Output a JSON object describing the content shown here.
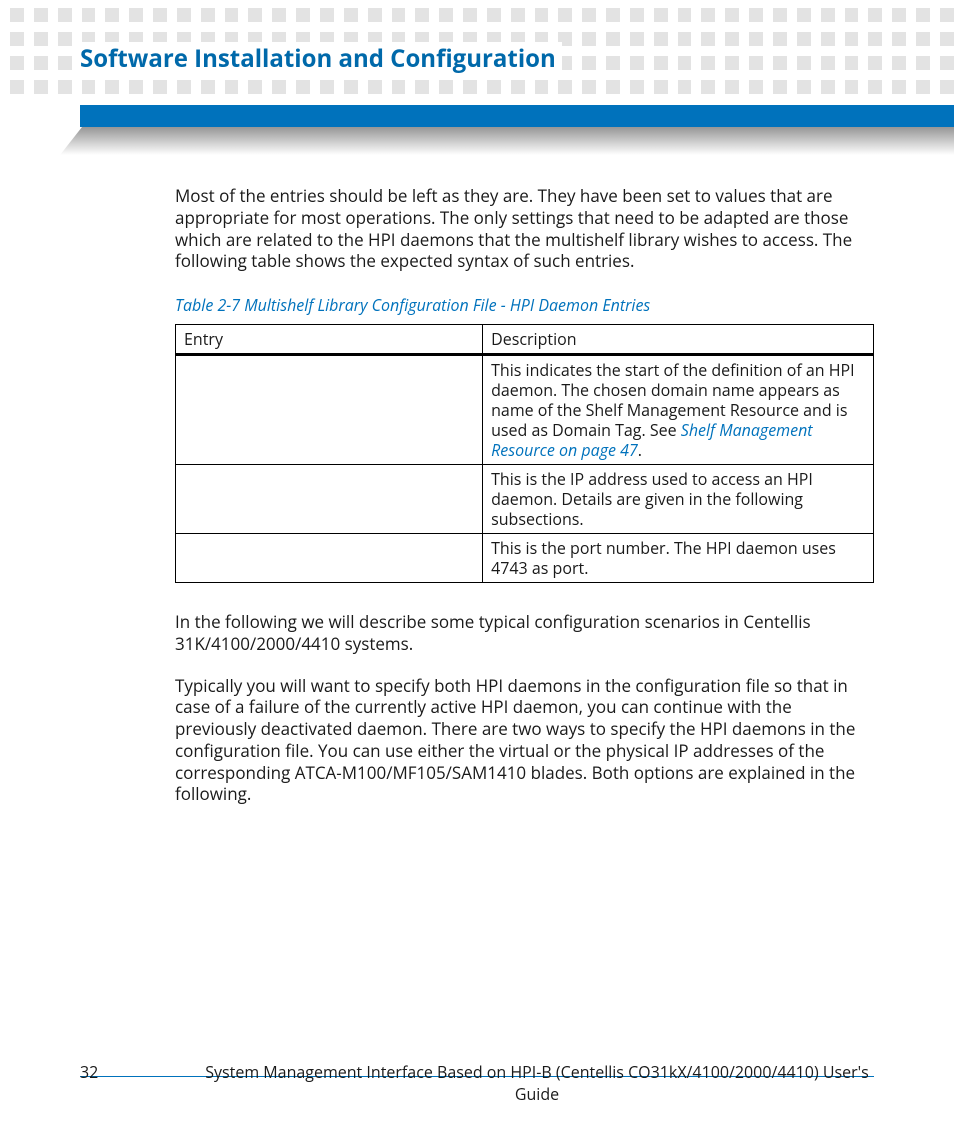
{
  "header": {
    "section_title": "Software Installation and Configuration",
    "dot_color": "#e3e3e3",
    "blue_bar_color": "#0072bc",
    "shadow_start_color": "#8a8a8a"
  },
  "body": {
    "para1": "Most of the entries should be left as they are. They have been set to values that are appropriate for most operations. The only settings that need to be adapted are those which are related to the HPI daemons that the multishelf library wishes to access. The following table shows the expected syntax of such entries.",
    "table_caption": "Table 2-7 Multishelf Library Configuration File - HPI Daemon Entries",
    "table": {
      "columns": [
        "Entry",
        "Description"
      ],
      "rows": [
        {
          "entry": "",
          "desc_pre": "This indicates the start of the definition of an HPI daemon. The chosen domain name appears as name of the Shelf Management Resource and is used as Domain Tag. See ",
          "link_text": "Shelf Management Resource",
          "desc_mid": " on page 47",
          "desc_post": "."
        },
        {
          "entry": "",
          "desc": "This is the IP address used to access an HPI daemon. Details are given in the following subsections."
        },
        {
          "entry": "",
          "desc": "This is the port number. The HPI daemon uses 4743 as port."
        }
      ]
    },
    "para2": "In the following we will describe some typical configuration scenarios in Centellis 31K/4100/2000/4410 systems.",
    "para3": "Typically you will want to specify both HPI daemons in the configuration file so that in case of a failure of the currently active HPI daemon, you can continue with the previously deactivated daemon. There are two ways to specify the HPI daemons in the configuration file. You can use either the virtual or the physical IP addresses of the corresponding ATCA-M100/MF105/SAM1410 blades. Both options are explained in the following."
  },
  "footer": {
    "page_number": "32",
    "text": "System Management Interface Based on HPI-B (Centellis CO31kX/4100/2000/4410) User's Guide",
    "rule_color": "#0072bc"
  },
  "colors": {
    "title_color": "#0069aa",
    "link_color": "#0072bc",
    "text_color": "#1a1a1a",
    "bg": "#ffffff"
  },
  "typography": {
    "title_fontsize_pt": 18,
    "body_fontsize_pt": 13,
    "caption_fontsize_pt": 12,
    "footer_fontsize_pt": 12
  }
}
